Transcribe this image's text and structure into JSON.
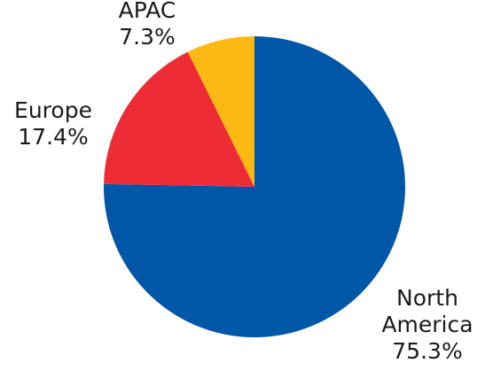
{
  "chart_data": {
    "type": "pie",
    "title": "",
    "slices": [
      {
        "label": "North America",
        "label_lines": [
          "North",
          "America"
        ],
        "value": 75.3,
        "value_label": "75.3%",
        "color": "#0057A8"
      },
      {
        "label": "Europe",
        "label_lines": [
          "Europe"
        ],
        "value": 17.4,
        "value_label": "17.4%",
        "color": "#EE2C35"
      },
      {
        "label": "APAC",
        "label_lines": [
          "APAC"
        ],
        "value": 7.3,
        "value_label": "7.3%",
        "color": "#FDB913"
      }
    ],
    "start_angle": "12 o'clock",
    "direction": "clockwise",
    "legend": "none",
    "labels": "outside"
  }
}
